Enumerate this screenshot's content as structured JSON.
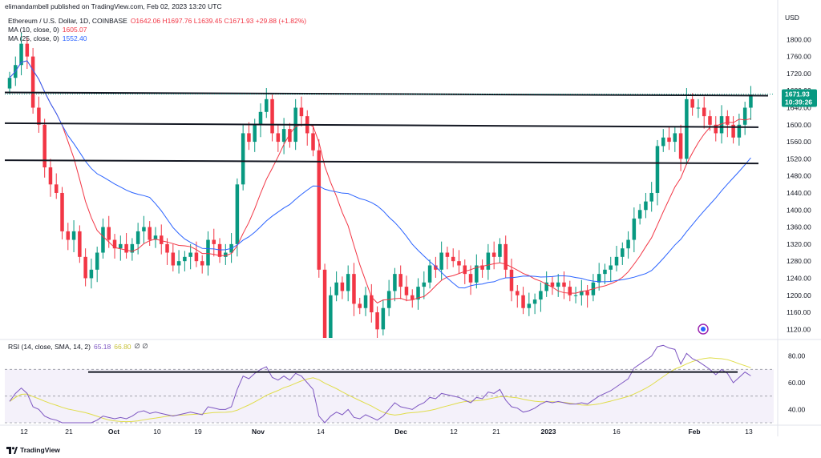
{
  "attribution": "elimandambell published on TradingView.com, Feb 02, 2023 13:20 UTC",
  "legend": {
    "instrument": "Ethereum / U.S. Dollar, 1D, COINBASE",
    "ohlc": "O1642.06 H1697.76 L1639.45 C1671.93 +29.88 (+1.82%)",
    "ma10_label": "MA (10, close, 0)",
    "ma10_value": "1605.07",
    "ma25_label": "MA (25, close, 0)",
    "ma25_value": "1552.40",
    "rsi_label": "RSI (14, close, SMA, 14, 2)",
    "rsi_value": "65.18",
    "rsi_ma_value": "66.80",
    "rsi_extra": "∅ ∅"
  },
  "axis": {
    "currency": "USD",
    "price_label": "1671.93",
    "countdown": "10:39:26"
  },
  "footer": {
    "brand": "TradingView"
  },
  "colors": {
    "up": "#089981",
    "down": "#f23645",
    "ma10": "#f23645",
    "ma25": "#2962ff",
    "rsi": "#7e57c2",
    "rsi_ma": "#e0dd4a"
  },
  "chart_data": [
    {
      "type": "candlestick",
      "title": "Ethereum / U.S. Dollar, 1D, COINBASE",
      "ylabel": "USD",
      "ylim": [
        1100,
        1840
      ],
      "yticks": [
        "1800.00",
        "1760.00",
        "1720.00",
        "1680.00",
        "1640.00",
        "1600.00",
        "1560.00",
        "1520.00",
        "1480.00",
        "1440.00",
        "1400.00",
        "1360.00",
        "1320.00",
        "1280.00",
        "1240.00",
        "1200.00",
        "1160.00",
        "1120.00"
      ],
      "xticks": [
        "12",
        "21",
        "Oct",
        "10",
        "19",
        "Nov",
        "14",
        "Dec",
        "12",
        "21",
        "2023",
        "16",
        "Feb",
        "13"
      ],
      "close": [
        1710,
        1740,
        1790,
        1760,
        1640,
        1600,
        1500,
        1460,
        1440,
        1350,
        1330,
        1350,
        1290,
        1240,
        1260,
        1300,
        1360,
        1330,
        1310,
        1320,
        1300,
        1320,
        1350,
        1360,
        1330,
        1340,
        1320,
        1300,
        1270,
        1280,
        1290,
        1300,
        1280,
        1270,
        1330,
        1320,
        1290,
        1300,
        1320,
        1460,
        1580,
        1560,
        1600,
        1630,
        1660,
        1580,
        1560,
        1590,
        1560,
        1640,
        1620,
        1580,
        1540,
        1260,
        1100,
        1200,
        1230,
        1210,
        1250,
        1180,
        1170,
        1200,
        1160,
        1120,
        1170,
        1210,
        1250,
        1220,
        1200,
        1190,
        1220,
        1230,
        1270,
        1260,
        1300,
        1290,
        1280,
        1270,
        1250,
        1230,
        1270,
        1260,
        1300,
        1290,
        1320,
        1260,
        1210,
        1200,
        1170,
        1180,
        1190,
        1210,
        1230,
        1220,
        1230,
        1220,
        1200,
        1200,
        1210,
        1200,
        1230,
        1250,
        1260,
        1270,
        1290,
        1310,
        1330,
        1380,
        1400,
        1420,
        1440,
        1550,
        1570,
        1560,
        1580,
        1520,
        1660,
        1640,
        1640,
        1620,
        1600,
        1580,
        1620,
        1600,
        1570,
        1600,
        1640,
        1671
      ],
      "rsi": [
        46,
        52,
        56,
        52,
        42,
        40,
        35,
        33,
        32,
        28,
        27,
        30,
        27,
        26,
        28,
        32,
        35,
        34,
        33,
        34,
        33,
        35,
        38,
        39,
        37,
        38,
        37,
        36,
        35,
        36,
        37,
        38,
        37,
        36,
        42,
        41,
        40,
        40,
        42,
        55,
        65,
        63,
        67,
        70,
        72,
        64,
        62,
        65,
        62,
        67,
        65,
        60,
        55,
        35,
        28,
        35,
        38,
        36,
        40,
        34,
        33,
        36,
        34,
        32,
        35,
        40,
        45,
        42,
        41,
        40,
        43,
        45,
        49,
        48,
        52,
        51,
        50,
        49,
        47,
        45,
        49,
        48,
        53,
        52,
        55,
        47,
        42,
        41,
        38,
        39,
        41,
        44,
        46,
        45,
        46,
        45,
        44,
        44,
        45,
        44,
        47,
        50,
        52,
        54,
        57,
        60,
        63,
        71,
        74,
        77,
        80,
        87,
        88,
        86,
        85,
        74,
        82,
        78,
        76,
        73,
        70,
        66,
        70,
        67,
        60,
        64,
        68,
        65.18
      ],
      "rsi_ylim": [
        30,
        90
      ],
      "rsi_yticks": [
        "80.00",
        "60.00",
        "40.00"
      ],
      "levels": [
        1672,
        1598,
        1513
      ],
      "rsi_trendline": 68
    }
  ]
}
